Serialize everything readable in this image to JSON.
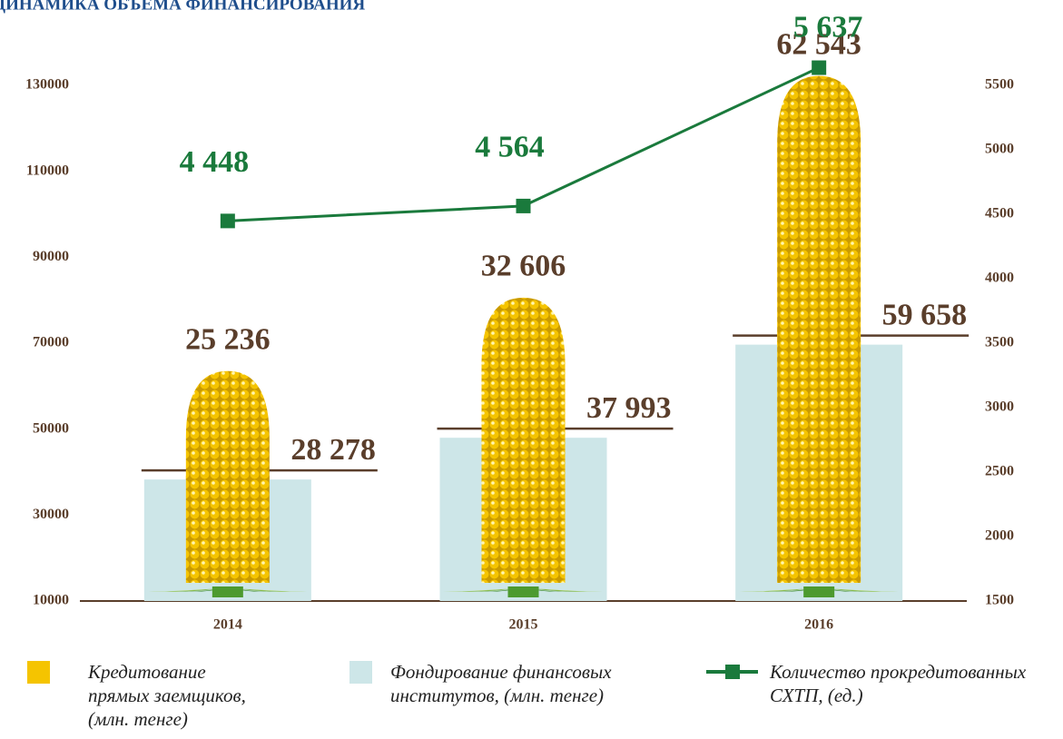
{
  "chart_data": {
    "type": "bar",
    "stacked": true,
    "title": "ДИНАМИКА ОБЪЕМА ФИНАНСИРОВАНИЯ",
    "categories": [
      "2014",
      "2015",
      "2016"
    ],
    "series": [
      {
        "name": "Кредитование прямых заемщиков, (млн. тенге)",
        "color": "#f5c400",
        "values": [
          25236,
          32606,
          62543
        ],
        "value_labels": [
          "25 236",
          "32 606",
          "62 543"
        ]
      },
      {
        "name": "Фондирование финансовых институтов, (млн. тенге)",
        "color": "#cde6e8",
        "values": [
          28278,
          37993,
          59658
        ],
        "value_labels": [
          "28 278",
          "37 993",
          "59 658"
        ]
      },
      {
        "name": "Количество прокредитованных СХТП, (ед.)",
        "type": "line",
        "axis": "y2",
        "color": "#1a7a3c",
        "values": [
          4448,
          4564,
          5637
        ],
        "value_labels": [
          "4 448",
          "4 564",
          "5 637"
        ]
      }
    ],
    "ylim": [
      10000,
      130000
    ],
    "yticks": [
      10000,
      30000,
      50000,
      70000,
      90000,
      110000,
      130000
    ],
    "y2lim": [
      1500,
      5500
    ],
    "y2ticks": [
      1500,
      2000,
      2500,
      3000,
      3500,
      4000,
      4500,
      5000,
      5500
    ],
    "grid": false
  }
}
